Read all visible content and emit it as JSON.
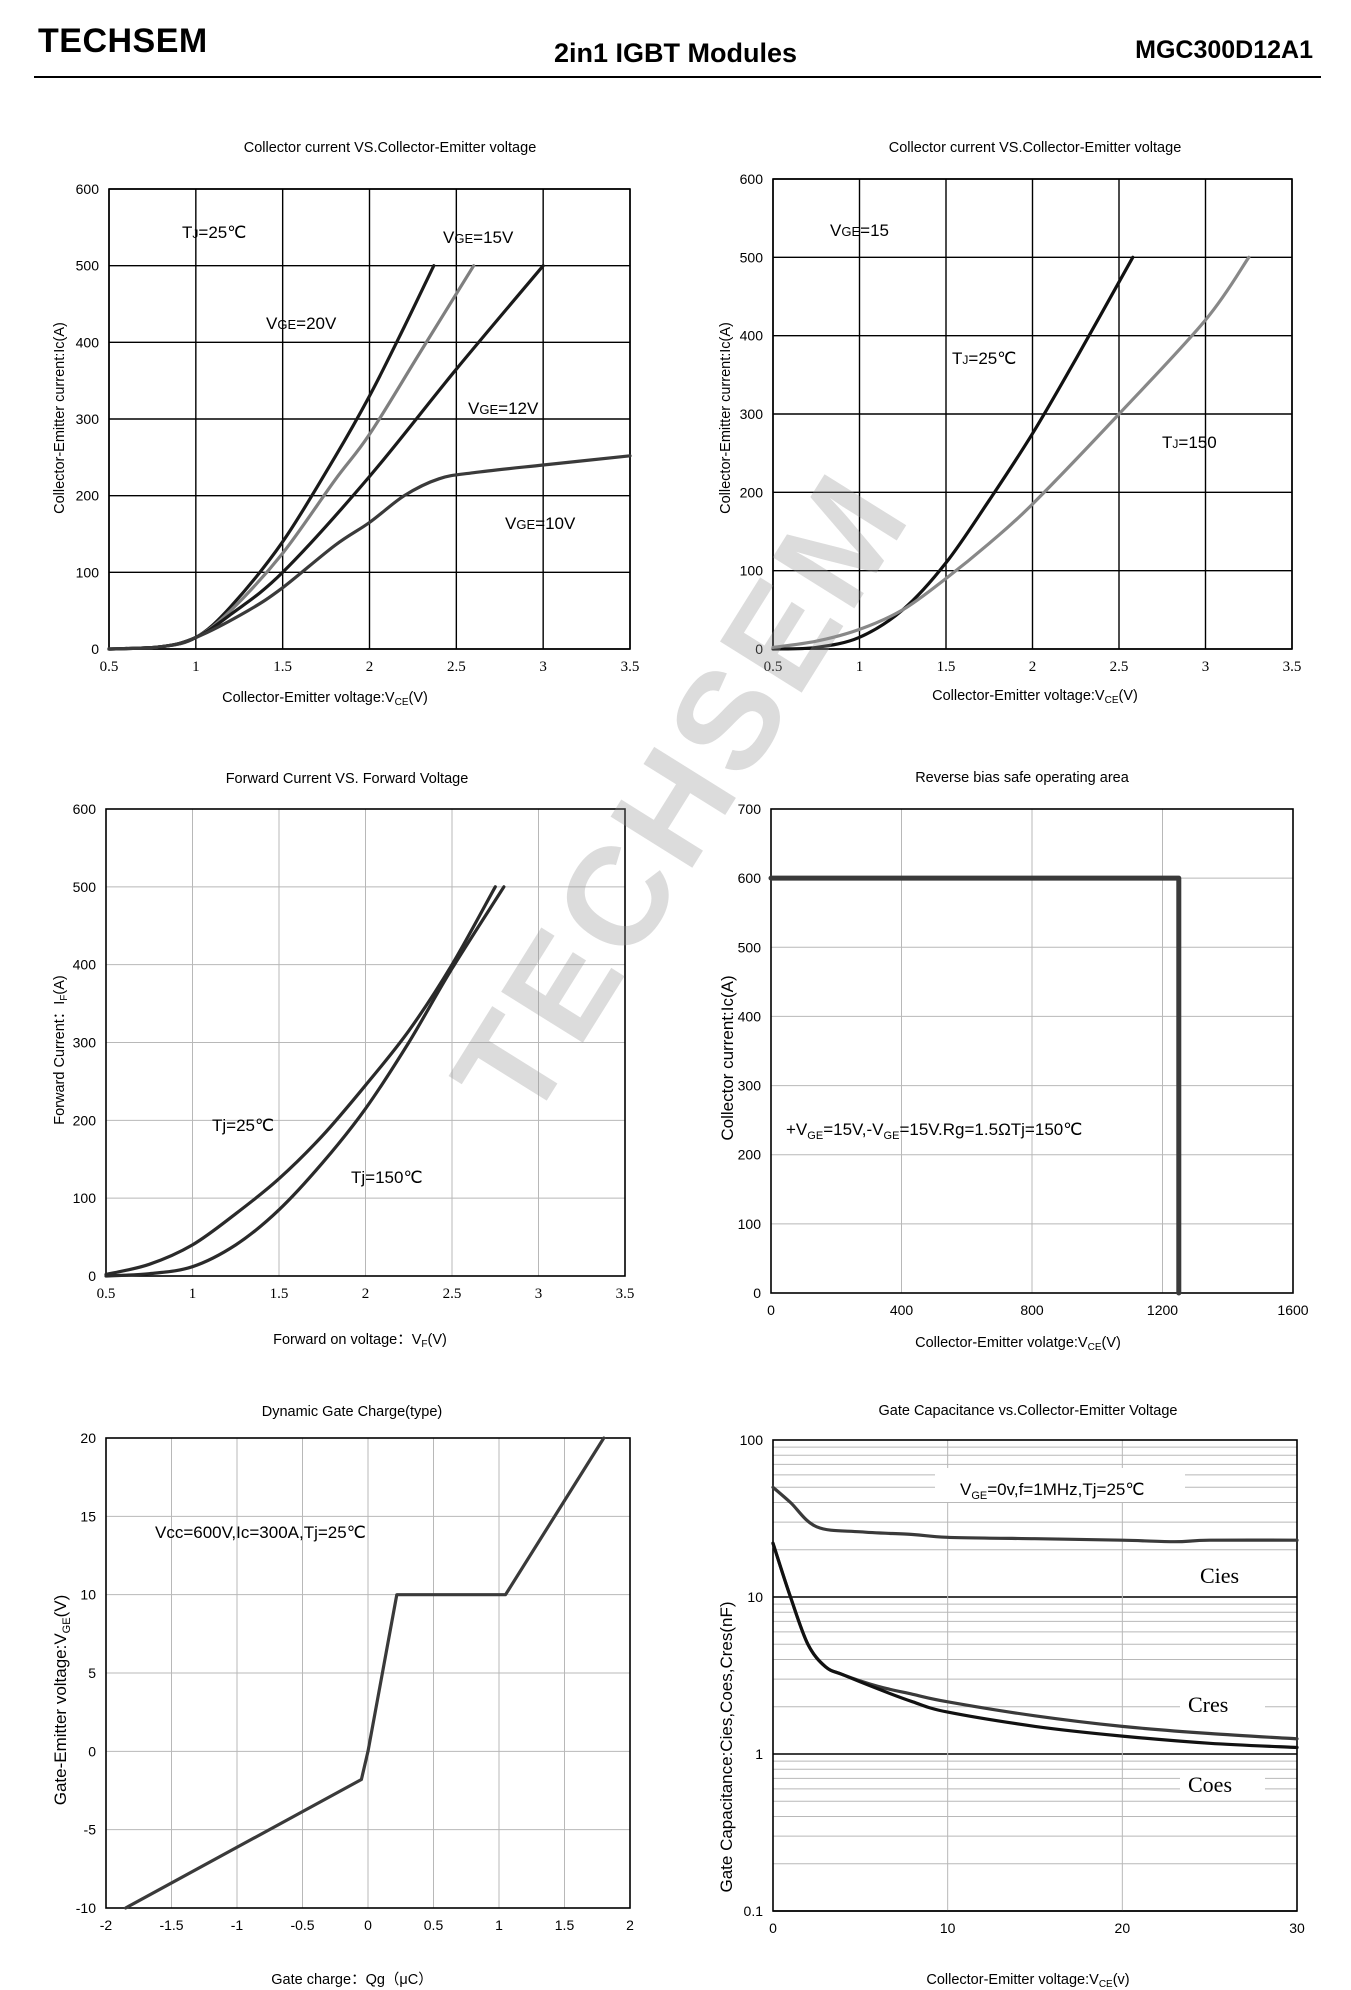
{
  "header": {
    "brand": "TECHSEM",
    "title": "2in1  IGBT  Modules",
    "part_number": "MGC300D12A1"
  },
  "watermark": "TECHSEM",
  "chart_data": [
    {
      "id": "c1",
      "type": "line",
      "title": "Collector current VS.Collector-Emitter voltage",
      "xlabel": "Collector-Emitter voltage:V",
      "xlabel_sub": "CE",
      "xlabel_tail": "(V)",
      "ylabel": "Collector-Emitter current:Ic(A)",
      "xlim": [
        0.5,
        3.5
      ],
      "ylim": [
        0,
        600
      ],
      "xticks": [
        "0.5",
        "1",
        "1.5",
        "2",
        "2.5",
        "3",
        "3.5"
      ],
      "yticks": [
        "0",
        "100",
        "200",
        "300",
        "400",
        "500",
        "600"
      ],
      "grid": "major",
      "annotations": [
        "TJ=25℃",
        "VGE=15V",
        "VGE=20V",
        "VGE=12V",
        "VGE=10V"
      ],
      "series": [
        {
          "name": "VGE=20V",
          "color": "#1a1a1a",
          "points": [
            [
              0.5,
              0
            ],
            [
              0.8,
              3
            ],
            [
              1.0,
              15
            ],
            [
              1.2,
              55
            ],
            [
              1.5,
              140
            ],
            [
              1.8,
              250
            ],
            [
              2.0,
              330
            ],
            [
              2.2,
              420
            ],
            [
              2.37,
              500
            ]
          ]
        },
        {
          "name": "VGE=15V",
          "color": "#7f7f7f",
          "points": [
            [
              0.5,
              0
            ],
            [
              0.8,
              3
            ],
            [
              1.0,
              15
            ],
            [
              1.2,
              50
            ],
            [
              1.5,
              125
            ],
            [
              1.8,
              220
            ],
            [
              2.0,
              280
            ],
            [
              2.3,
              390
            ],
            [
              2.6,
              500
            ]
          ]
        },
        {
          "name": "VGE=12V",
          "color": "#1a1a1a",
          "points": [
            [
              0.5,
              0
            ],
            [
              0.8,
              3
            ],
            [
              1.0,
              15
            ],
            [
              1.2,
              45
            ],
            [
              1.5,
              100
            ],
            [
              2.0,
              225
            ],
            [
              2.5,
              365
            ],
            [
              3.0,
              500
            ]
          ]
        },
        {
          "name": "VGE=10V",
          "color": "#3a3a3a",
          "points": [
            [
              0.5,
              0
            ],
            [
              0.8,
              3
            ],
            [
              1.0,
              15
            ],
            [
              1.3,
              50
            ],
            [
              1.5,
              80
            ],
            [
              1.8,
              135
            ],
            [
              2.0,
              165
            ],
            [
              2.2,
              200
            ],
            [
              2.4,
              222
            ],
            [
              2.6,
              230
            ],
            [
              3.0,
              240
            ],
            [
              3.5,
              252
            ]
          ]
        }
      ]
    },
    {
      "id": "c2",
      "type": "line",
      "title": "Collector current VS.Collector-Emitter voltage",
      "xlabel": "Collector-Emitter voltage:V",
      "xlabel_sub": "CE",
      "xlabel_tail": "(V)",
      "ylabel": "Collector-Emitter current:Ic(A)",
      "xlim": [
        0.5,
        3.5
      ],
      "ylim": [
        0,
        600
      ],
      "xticks": [
        "0.5",
        "1",
        "1.5",
        "2",
        "2.5",
        "3",
        "3.5"
      ],
      "yticks": [
        "0",
        "100",
        "200",
        "300",
        "400",
        "500",
        "600"
      ],
      "grid": "major",
      "annotations": [
        "VGE=15",
        "TJ=25℃",
        "TJ=150"
      ],
      "series": [
        {
          "name": "TJ=25℃",
          "color": "#111111",
          "points": [
            [
              0.5,
              0
            ],
            [
              0.75,
              2
            ],
            [
              1.0,
              15
            ],
            [
              1.25,
              50
            ],
            [
              1.5,
              110
            ],
            [
              1.75,
              190
            ],
            [
              2.0,
              275
            ],
            [
              2.25,
              370
            ],
            [
              2.58,
              500
            ]
          ]
        },
        {
          "name": "TJ=150",
          "color": "#888888",
          "points": [
            [
              0.5,
              2
            ],
            [
              0.75,
              10
            ],
            [
              1.0,
              25
            ],
            [
              1.25,
              50
            ],
            [
              1.5,
              90
            ],
            [
              1.75,
              135
            ],
            [
              2.0,
              185
            ],
            [
              2.5,
              300
            ],
            [
              3.0,
              420
            ],
            [
              3.25,
              500
            ]
          ]
        }
      ]
    },
    {
      "id": "c3",
      "type": "line",
      "title": "Forward Current VS. Forward Voltage",
      "xlabel": "Forward on voltage：V",
      "xlabel_sub": "F",
      "xlabel_tail": "(V)",
      "ylabel": "Forward Current：I",
      "ylabel_sub": "F",
      "ylabel_tail": "(A)",
      "xlim": [
        0.5,
        3.5
      ],
      "ylim": [
        0,
        600
      ],
      "xticks": [
        "0.5",
        "1",
        "1.5",
        "2",
        "2.5",
        "3",
        "3.5"
      ],
      "yticks": [
        "0",
        "100",
        "200",
        "300",
        "400",
        "500",
        "600"
      ],
      "grid": "major",
      "annotations": [
        "Tj=25℃",
        "Tj=150℃"
      ],
      "series": [
        {
          "name": "Tj=25℃",
          "color": "#2a2a2a",
          "points": [
            [
              0.5,
              2
            ],
            [
              0.75,
              15
            ],
            [
              1.0,
              40
            ],
            [
              1.25,
              80
            ],
            [
              1.5,
              125
            ],
            [
              1.75,
              180
            ],
            [
              2.0,
              245
            ],
            [
              2.25,
              315
            ],
            [
              2.5,
              400
            ],
            [
              2.75,
              500
            ]
          ]
        },
        {
          "name": "Tj=150℃",
          "color": "#2a2a2a",
          "points": [
            [
              0.5,
              0
            ],
            [
              0.75,
              3
            ],
            [
              1.0,
              12
            ],
            [
              1.25,
              40
            ],
            [
              1.5,
              85
            ],
            [
              1.75,
              145
            ],
            [
              2.0,
              215
            ],
            [
              2.25,
              300
            ],
            [
              2.5,
              395
            ],
            [
              2.8,
              500
            ]
          ]
        }
      ]
    },
    {
      "id": "c4",
      "type": "line",
      "title": "Reverse bias safe operating area",
      "xlabel": "Collector-Emitter volatge:V",
      "xlabel_sub": "CE",
      "xlabel_tail": "(V)",
      "ylabel": "Collector current:Ic(A)",
      "xlim": [
        0,
        1600
      ],
      "ylim": [
        0,
        700
      ],
      "xticks": [
        "0",
        "400",
        "800",
        "1200",
        "1600"
      ],
      "yticks": [
        "0",
        "100",
        "200",
        "300",
        "400",
        "500",
        "600",
        "700"
      ],
      "grid": "major",
      "annotation": "+VGE=15V,-VGE=15V.Rg=1.5ΩTj=150℃",
      "series": [
        {
          "name": "RBSOA",
          "color": "#3a3a3a",
          "points": [
            [
              0,
              600
            ],
            [
              1250,
              600
            ],
            [
              1250,
              0
            ]
          ]
        }
      ]
    },
    {
      "id": "c5",
      "type": "line",
      "title": "Dynamic Gate Charge(type)",
      "xlabel": "Gate charge：Qg（μC）",
      "ylabel": "Gate-Emitter voltage:V",
      "ylabel_sub": "GE",
      "ylabel_tail": "(V)",
      "xlim": [
        -2,
        2
      ],
      "ylim": [
        -10,
        20
      ],
      "xticks": [
        "-2",
        "-1.5",
        "-1",
        "-0.5",
        "0",
        "0.5",
        "1",
        "1.5",
        "2"
      ],
      "yticks": [
        "-10",
        "-5",
        "0",
        "5",
        "10",
        "15",
        "20"
      ],
      "grid": "major",
      "annotation": "Vcc=600V,Ic=300A,Tj=25℃",
      "series": [
        {
          "name": "VGE",
          "color": "#3a3a3a",
          "points": [
            [
              -1.85,
              -10
            ],
            [
              -0.05,
              -1.8
            ],
            [
              0.0,
              0
            ],
            [
              0.22,
              10
            ],
            [
              1.05,
              10
            ],
            [
              1.8,
              20
            ]
          ]
        }
      ]
    },
    {
      "id": "c6",
      "type": "line",
      "title": "Gate Capacitance vs.Collector-Emitter Voltage",
      "xlabel": "Collector-Emitter voltage:V",
      "xlabel_sub": "CE",
      "xlabel_tail": "(v)",
      "ylabel": "Gate Capacitance:Cies,Coes,Cres(nF)",
      "xlim": [
        0,
        30
      ],
      "ylim": [
        0.1,
        100
      ],
      "yscale": "log",
      "xticks": [
        "0",
        "10",
        "20",
        "30"
      ],
      "yticks": [
        "0.1",
        "1",
        "10",
        "100"
      ],
      "grid": "log",
      "annotation": "VGE=0v,f=1MHz,Tj=25℃",
      "series": [
        {
          "name": "Cies",
          "color": "#3a3a3a",
          "points": [
            [
              0,
              50
            ],
            [
              1,
              40
            ],
            [
              2.5,
              28
            ],
            [
              5,
              26
            ],
            [
              8,
              25
            ],
            [
              10,
              24
            ],
            [
              15,
              23.5
            ],
            [
              20,
              23
            ],
            [
              23,
              22.5
            ],
            [
              25,
              23
            ],
            [
              30,
              23
            ]
          ]
        },
        {
          "name": "Cres",
          "color": "#3a3a3a",
          "points": [
            [
              0,
              22
            ],
            [
              1,
              10
            ],
            [
              2,
              5
            ],
            [
              3,
              3.6
            ],
            [
              4,
              3.2
            ],
            [
              6,
              2.7
            ],
            [
              8,
              2.4
            ],
            [
              10,
              2.15
            ],
            [
              15,
              1.75
            ],
            [
              20,
              1.5
            ],
            [
              25,
              1.35
            ],
            [
              30,
              1.25
            ]
          ]
        },
        {
          "name": "Coes",
          "color": "#111111",
          "points": [
            [
              0,
              22
            ],
            [
              1,
              10
            ],
            [
              2,
              5
            ],
            [
              3,
              3.6
            ],
            [
              4,
              3.2
            ],
            [
              6,
              2.6
            ],
            [
              8,
              2.15
            ],
            [
              10,
              1.85
            ],
            [
              15,
              1.5
            ],
            [
              20,
              1.3
            ],
            [
              25,
              1.17
            ],
            [
              30,
              1.1
            ]
          ]
        }
      ]
    }
  ]
}
